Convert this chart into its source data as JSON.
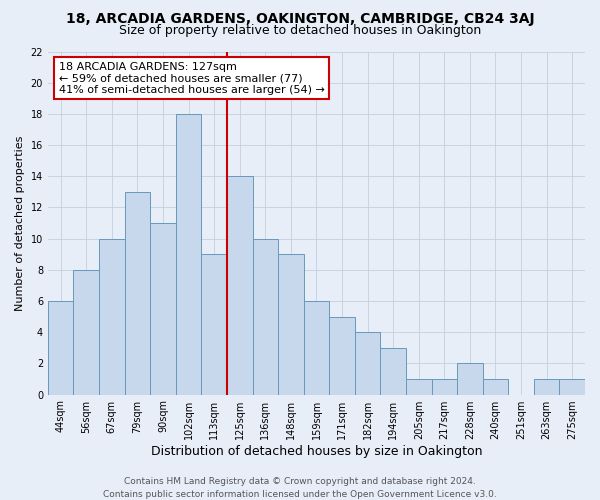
{
  "title": "18, ARCADIA GARDENS, OAKINGTON, CAMBRIDGE, CB24 3AJ",
  "subtitle": "Size of property relative to detached houses in Oakington",
  "xlabel": "Distribution of detached houses by size in Oakington",
  "ylabel": "Number of detached properties",
  "bar_labels": [
    "44sqm",
    "56sqm",
    "67sqm",
    "79sqm",
    "90sqm",
    "102sqm",
    "113sqm",
    "125sqm",
    "136sqm",
    "148sqm",
    "159sqm",
    "171sqm",
    "182sqm",
    "194sqm",
    "205sqm",
    "217sqm",
    "228sqm",
    "240sqm",
    "251sqm",
    "263sqm",
    "275sqm"
  ],
  "bar_heights": [
    6,
    8,
    10,
    13,
    11,
    18,
    9,
    14,
    10,
    9,
    6,
    5,
    4,
    3,
    1,
    1,
    2,
    1,
    0,
    1,
    1
  ],
  "bar_color": "#c8d8ec",
  "bar_edge_color": "#6699bb",
  "vline_x_index": 7,
  "vline_color": "#cc0000",
  "annotation_title": "18 ARCADIA GARDENS: 127sqm",
  "annotation_line1": "← 59% of detached houses are smaller (77)",
  "annotation_line2": "41% of semi-detached houses are larger (54) →",
  "annotation_box_facecolor": "#ffffff",
  "annotation_box_edgecolor": "#cc0000",
  "ylim": [
    0,
    22
  ],
  "yticks": [
    0,
    2,
    4,
    6,
    8,
    10,
    12,
    14,
    16,
    18,
    20,
    22
  ],
  "footer_line1": "Contains HM Land Registry data © Crown copyright and database right 2024.",
  "footer_line2": "Contains public sector information licensed under the Open Government Licence v3.0.",
  "bg_color": "#e8eef8",
  "plot_bg_color": "#e8eef8",
  "title_fontsize": 10,
  "subtitle_fontsize": 9,
  "xlabel_fontsize": 9,
  "ylabel_fontsize": 8,
  "tick_fontsize": 7,
  "footer_fontsize": 6.5,
  "annotation_fontsize": 8,
  "grid_color": "#c0cfe0"
}
